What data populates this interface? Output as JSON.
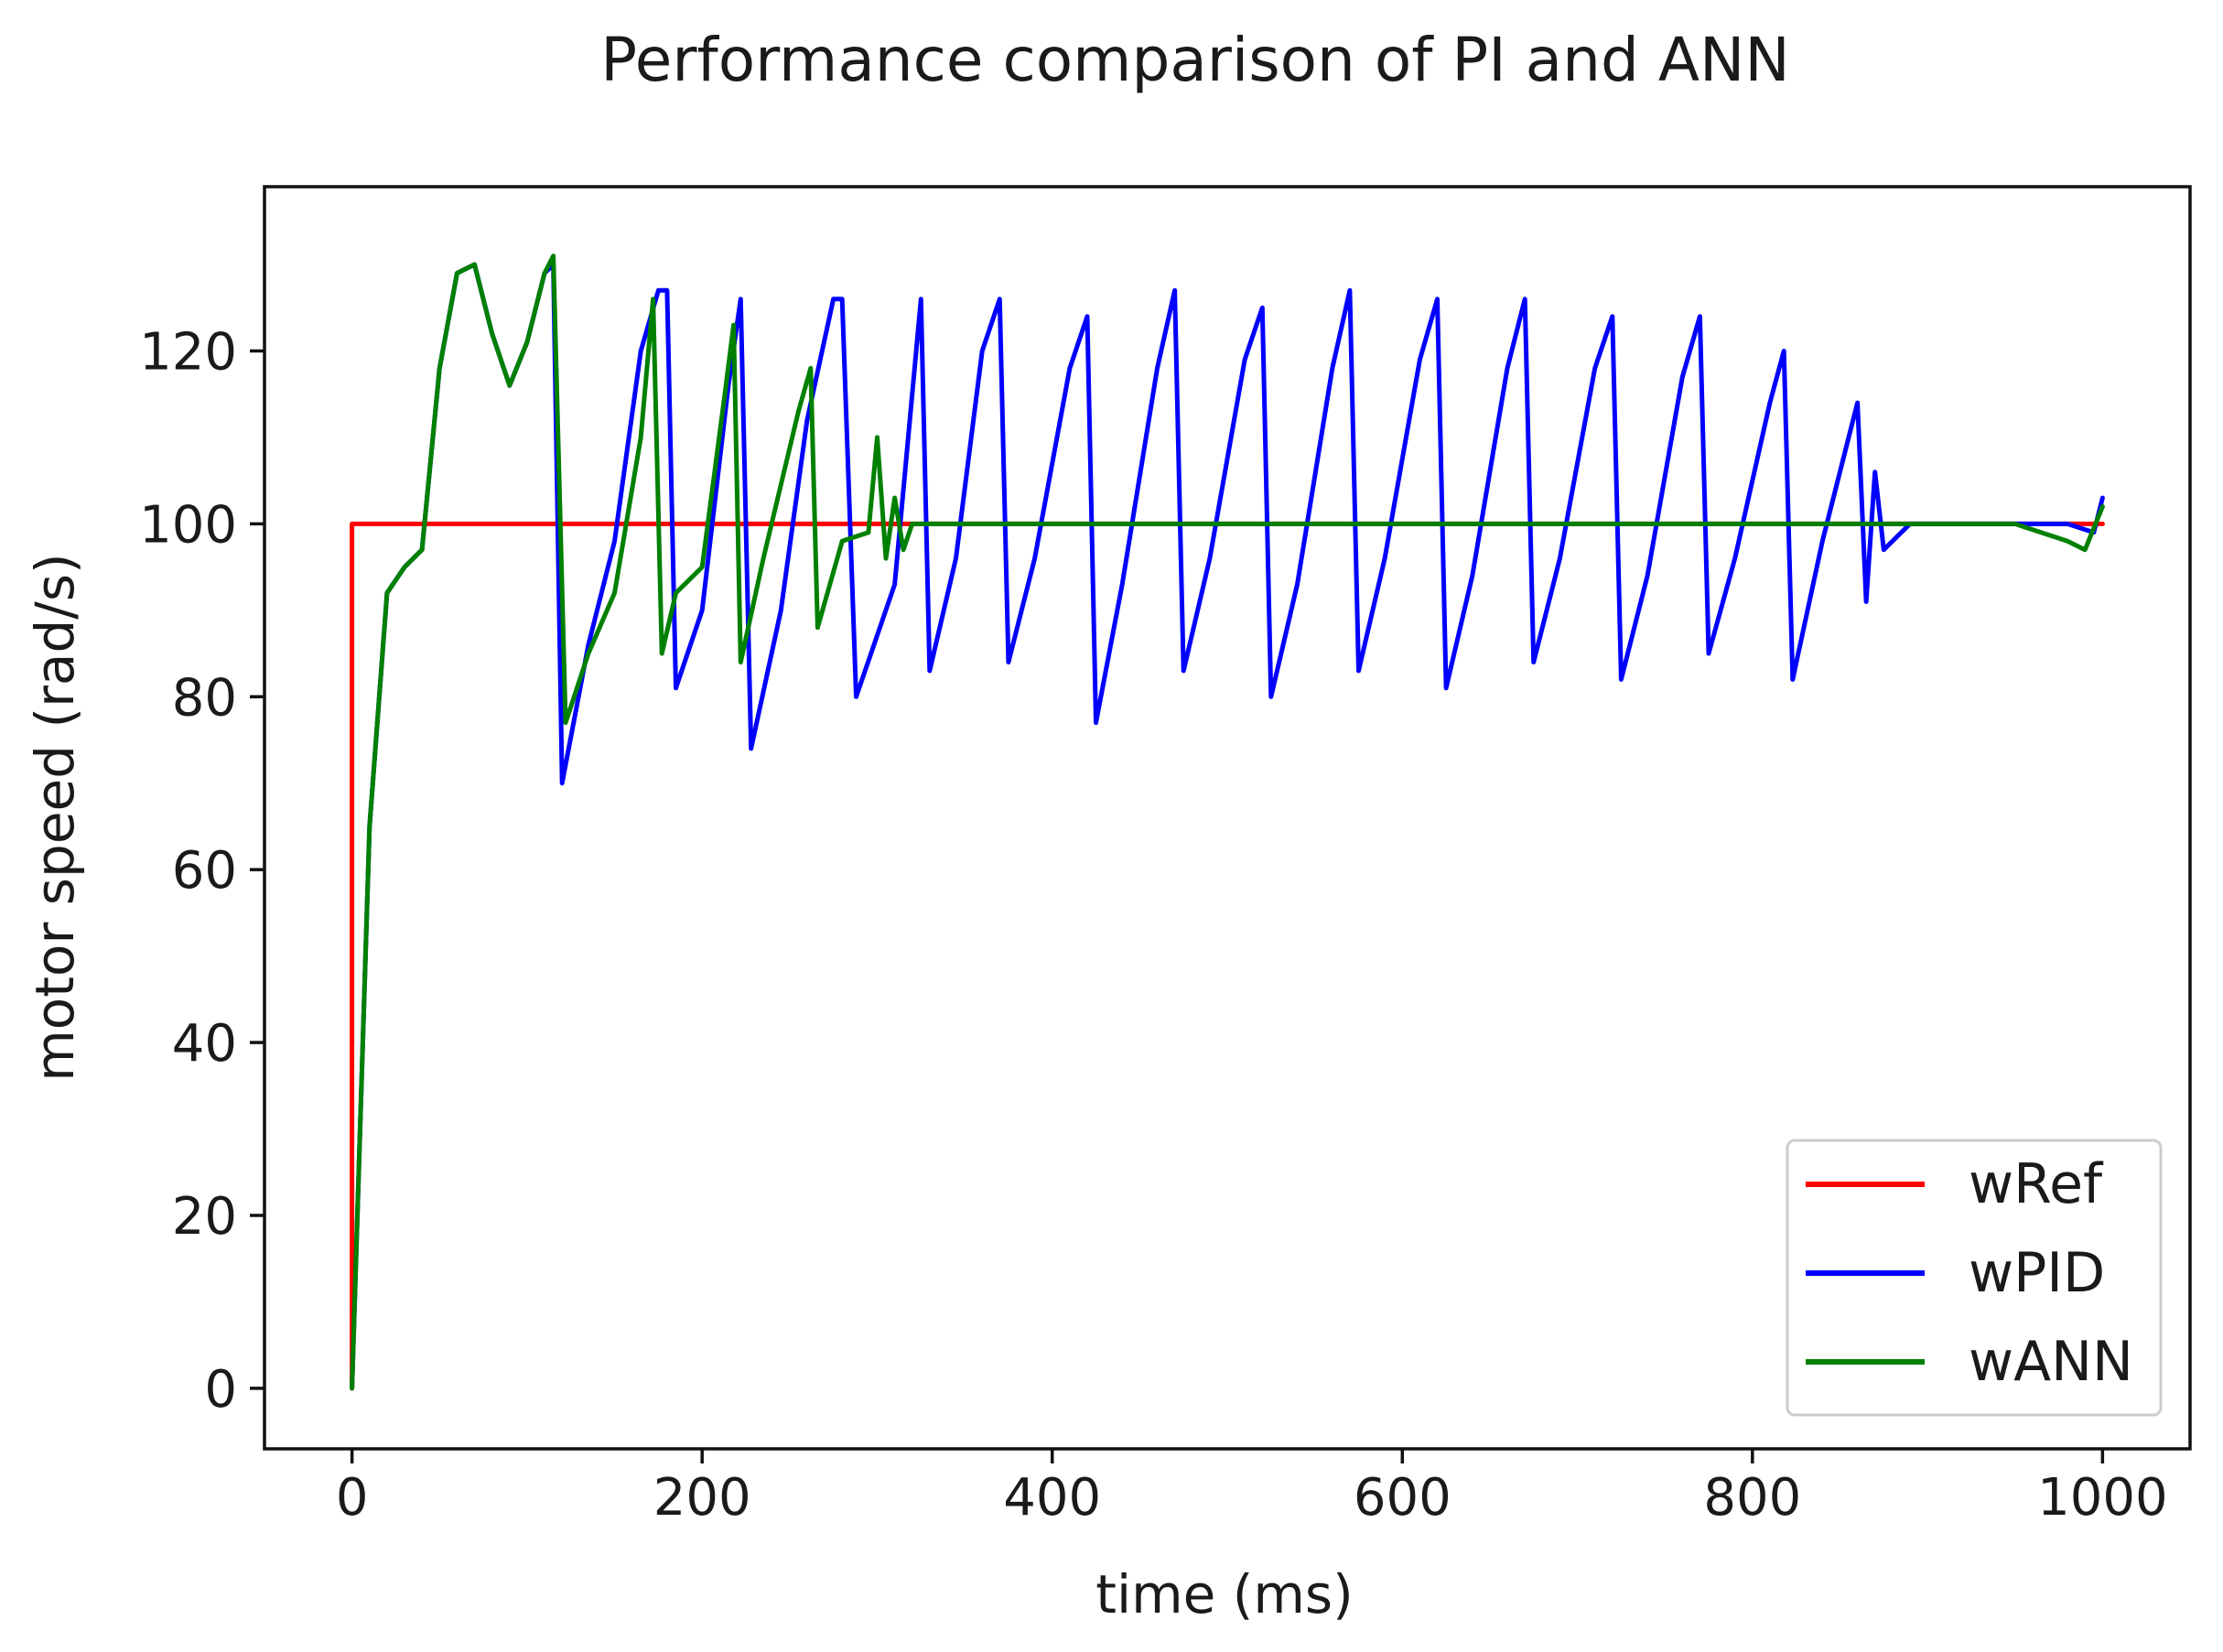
{
  "chart_data": {
    "type": "line",
    "title": "Performance comparison of PI and ANN",
    "xlabel": "time (ms)",
    "ylabel": "motor speed (rad/s)",
    "xlim": [
      -50,
      1050
    ],
    "ylim": [
      -7,
      139
    ],
    "xticks": [
      0,
      200,
      400,
      600,
      800,
      1000
    ],
    "yticks": [
      0,
      20,
      40,
      60,
      80,
      100,
      120
    ],
    "grid": false,
    "legend_position": "lower right",
    "series": [
      {
        "name": "wRef",
        "color": "#ff0000",
        "x": [
          0,
          0,
          1000
        ],
        "y": [
          0,
          100,
          100
        ]
      },
      {
        "name": "wPID",
        "color": "#0000ff",
        "x": [
          0,
          10,
          20,
          30,
          40,
          50,
          60,
          70,
          80,
          90,
          100,
          110,
          115,
          120,
          135,
          150,
          165,
          175,
          180,
          185,
          200,
          215,
          222,
          228,
          245,
          260,
          275,
          280,
          288,
          310,
          325,
          330,
          345,
          360,
          370,
          375,
          390,
          410,
          420,
          425,
          440,
          460,
          470,
          475,
          490,
          510,
          520,
          525,
          540,
          560,
          570,
          575,
          590,
          610,
          620,
          625,
          640,
          660,
          670,
          675,
          690,
          710,
          720,
          725,
          740,
          760,
          770,
          775,
          790,
          810,
          818,
          823,
          840,
          855,
          860,
          865,
          870,
          875,
          890,
          920,
          950,
          980,
          995,
          1000
        ],
        "y": [
          0,
          65,
          92,
          95,
          97,
          118,
          129,
          130,
          122,
          116,
          121,
          129,
          130,
          70,
          86,
          98,
          120,
          127,
          127,
          81,
          90,
          116,
          126,
          74,
          90,
          112,
          126,
          126,
          80,
          93,
          126,
          83,
          96,
          120,
          126,
          84,
          96,
          118,
          124,
          77,
          93,
          118,
          127,
          83,
          96,
          119,
          125,
          80,
          93,
          118,
          127,
          83,
          96,
          119,
          126,
          81,
          94,
          118,
          126,
          84,
          96,
          118,
          124,
          82,
          94,
          117,
          124,
          85,
          96,
          114,
          120,
          82,
          98,
          110,
          114,
          91,
          106,
          97,
          100,
          100,
          100,
          100,
          99,
          103
        ]
      },
      {
        "name": "wANN",
        "color": "#008000",
        "x": [
          0,
          10,
          20,
          30,
          40,
          50,
          60,
          70,
          80,
          90,
          100,
          110,
          115,
          122,
          135,
          150,
          165,
          172,
          177,
          185,
          200,
          213,
          218,
          222,
          235,
          255,
          262,
          266,
          280,
          295,
          300,
          305,
          310,
          315,
          320,
          340,
          400,
          450,
          500,
          550,
          600,
          650,
          700,
          750,
          800,
          850,
          900,
          950,
          980,
          990,
          1000
        ],
        "y": [
          0,
          65,
          92,
          95,
          97,
          118,
          129,
          130,
          122,
          116,
          121,
          129,
          131,
          77,
          85,
          92,
          110,
          126,
          85,
          92,
          95,
          115,
          123,
          84,
          96,
          113,
          118,
          88,
          98,
          99,
          110,
          96,
          103,
          97,
          100,
          100,
          100,
          100,
          100,
          100,
          100,
          100,
          100,
          100,
          100,
          100,
          100,
          100,
          98,
          97,
          102
        ]
      }
    ]
  }
}
